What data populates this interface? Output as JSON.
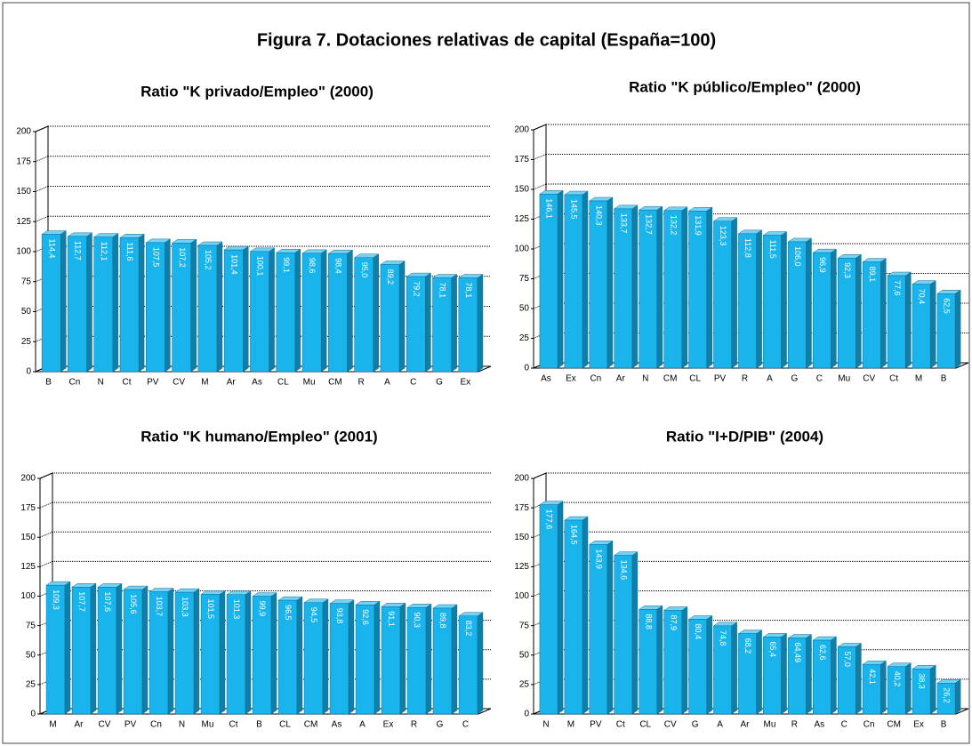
{
  "title": "Figura 7. Dotaciones relativas de capital (España=100)",
  "chart_data": [
    {
      "type": "bar",
      "title": "Ratio \"K privado/Empleo\" (2000)",
      "categories": [
        "B",
        "Cn",
        "N",
        "Ct",
        "PV",
        "CV",
        "M",
        "Ar",
        "As",
        "CL",
        "Mu",
        "CM",
        "R",
        "A",
        "C",
        "G",
        "Ex"
      ],
      "values": [
        114.4,
        112.7,
        112.1,
        111.6,
        107.5,
        107.2,
        105.2,
        101.4,
        100.1,
        99.1,
        98.6,
        98.4,
        95.0,
        89.2,
        79.2,
        78.1,
        78.1
      ],
      "value_labels": [
        "114,4",
        "112,7",
        "112,1",
        "111,6",
        "107,5",
        "107,2",
        "105,2",
        "101,4",
        "100,1",
        "99,1",
        "98,6",
        "98,4",
        "95,0",
        "89,2",
        "79,2",
        "78,1",
        "78,1"
      ],
      "color": "#1ab4ec",
      "ylim": [
        0,
        200
      ],
      "yticks": [
        0,
        25,
        50,
        75,
        100,
        125,
        150,
        175,
        200
      ],
      "grid": true
    },
    {
      "type": "bar",
      "title": "Ratio \"K público/Empleo\" (2000)",
      "categories": [
        "As",
        "Ex",
        "Cn",
        "Ar",
        "N",
        "CM",
        "CL",
        "PV",
        "R",
        "A",
        "G",
        "C",
        "Mu",
        "CV",
        "Ct",
        "M",
        "B"
      ],
      "values": [
        146.1,
        145.5,
        140.3,
        133.7,
        132.7,
        132.2,
        131.9,
        123.3,
        112.8,
        111.5,
        106.0,
        96.9,
        92.3,
        89.1,
        77.6,
        70.4,
        62.5
      ],
      "value_labels": [
        "146,1",
        "145,5",
        "140,3",
        "133,7",
        "132,7",
        "132,2",
        "131,9",
        "123,3",
        "112,8",
        "111,5",
        "106,0",
        "96,9",
        "92,3",
        "89,1",
        "77,6",
        "70,4",
        "62,5"
      ],
      "color": "#1ab4ec",
      "ylim": [
        0,
        200
      ],
      "yticks": [
        0,
        25,
        50,
        75,
        100,
        125,
        150,
        175,
        200
      ],
      "grid": true
    },
    {
      "type": "bar",
      "title": "Ratio \"K humano/Empleo\" (2001)",
      "categories": [
        "M",
        "Ar",
        "CV",
        "PV",
        "Cn",
        "N",
        "Mu",
        "Ct",
        "B",
        "CL",
        "CM",
        "As",
        "A",
        "Ex",
        "R",
        "G",
        "C"
      ],
      "values": [
        109.3,
        107.7,
        107.6,
        105.6,
        103.7,
        103.3,
        101.5,
        101.3,
        99.9,
        96.5,
        94.5,
        93.8,
        92.6,
        91.1,
        90.3,
        89.8,
        83.2
      ],
      "value_labels": [
        "109,3",
        "107,7",
        "107,6",
        "105,6",
        "103,7",
        "103,3",
        "101,5",
        "101,3",
        "99,9",
        "96,5",
        "94,5",
        "93,8",
        "92,6",
        "91,1",
        "90,3",
        "89,8",
        "83,2"
      ],
      "color": "#1ab4ec",
      "ylim": [
        0,
        200
      ],
      "yticks": [
        0,
        25,
        50,
        75,
        100,
        125,
        150,
        175,
        200
      ],
      "grid": true
    },
    {
      "type": "bar",
      "title": "Ratio \"I+D/PIB\" (2004)",
      "categories": [
        "N",
        "M",
        "PV",
        "Ct",
        "CL",
        "CV",
        "G",
        "A",
        "Ar",
        "Mu",
        "R",
        "As",
        "C",
        "Cn",
        "CM",
        "Ex",
        "B"
      ],
      "values": [
        177.6,
        164.5,
        143.9,
        134.6,
        88.8,
        87.9,
        80.4,
        74.8,
        68.2,
        65.4,
        64.49,
        62.6,
        57.0,
        42.1,
        40.2,
        38.3,
        26.2
      ],
      "value_labels": [
        "177,6",
        "164,5",
        "143,9",
        "134,6",
        "88,8",
        "87,9",
        "80,4",
        "74,8",
        "68,2",
        "65,4",
        "64,49",
        "62,6",
        "57,0",
        "42,1",
        "40,2",
        "38,3",
        "26,2"
      ],
      "color": "#1ab4ec",
      "ylim": [
        0,
        200
      ],
      "yticks": [
        0,
        25,
        50,
        75,
        100,
        125,
        150,
        175,
        200
      ],
      "grid": true
    }
  ]
}
